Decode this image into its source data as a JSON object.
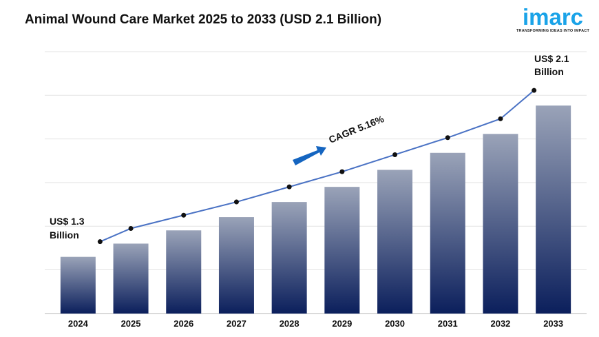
{
  "chart_data": {
    "type": "bar",
    "title": "Animal Wound Care Market 2025 to 2033 (USD 2.1 Billion)",
    "categories": [
      "2024",
      "2025",
      "2026",
      "2027",
      "2028",
      "2029",
      "2030",
      "2031",
      "2032",
      "2033"
    ],
    "values": [
      1.3,
      1.37,
      1.44,
      1.51,
      1.59,
      1.67,
      1.76,
      1.85,
      1.95,
      2.1
    ],
    "overlay_line": true,
    "ylim": [
      1.0,
      2.2
    ],
    "grid": true,
    "xlabel": "",
    "ylabel": "",
    "annotations": {
      "start_line1": "US$ 1.3",
      "start_line2": "Billion",
      "end_line1": "US$ 2.1",
      "end_line2": "Billion",
      "cagr": "CAGR 5.16%"
    },
    "colors": {
      "bar_top": "#9aa3b8",
      "bar_bottom": "#0b1f5c",
      "line": "#4a72c4",
      "arrow": "#1565c0"
    }
  },
  "logo": {
    "word": "imarc",
    "tagline": "TRANSFORMING IDEAS INTO IMPACT"
  }
}
